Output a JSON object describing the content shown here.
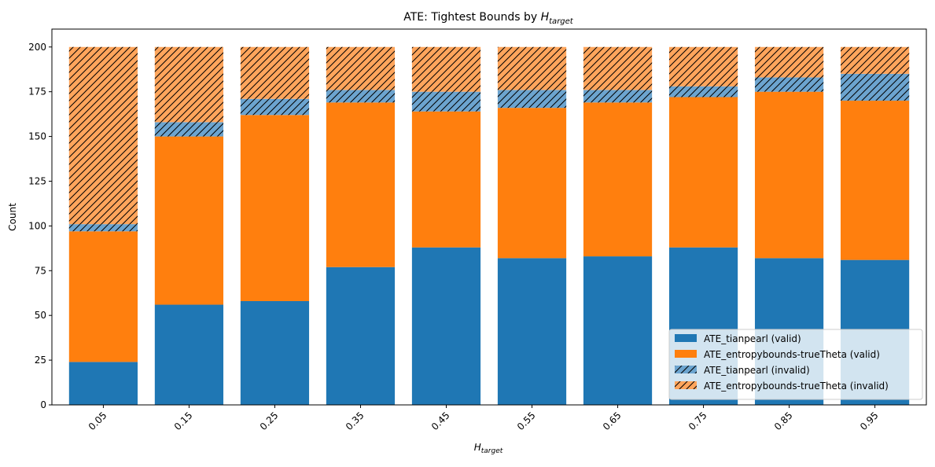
{
  "chart_data": {
    "type": "bar",
    "stacked": true,
    "title_main": "ATE: Tightest Bounds by ",
    "title_var": "H",
    "title_sub": "target",
    "xlabel_var": "H",
    "xlabel_sub": "target",
    "ylabel": "Count",
    "ylim": [
      0,
      210
    ],
    "yticks": [
      0,
      25,
      50,
      75,
      100,
      125,
      150,
      175,
      200
    ],
    "categories": [
      "0.05",
      "0.15",
      "0.25",
      "0.35",
      "0.45",
      "0.55",
      "0.65",
      "0.75",
      "0.85",
      "0.95"
    ],
    "series": [
      {
        "name": "ATE_tianpearl (valid)",
        "color": "#1f77b4",
        "hatch": false,
        "values": [
          24,
          56,
          58,
          77,
          88,
          82,
          83,
          88,
          82,
          81
        ]
      },
      {
        "name": "ATE_entropybounds-trueTheta (valid)",
        "color": "#ff7f0e",
        "hatch": false,
        "values": [
          73,
          94,
          104,
          92,
          76,
          84,
          86,
          84,
          93,
          89
        ]
      },
      {
        "name": "ATE_tianpearl (invalid)",
        "color": "#6ca4cf",
        "hatch": true,
        "values": [
          4,
          8,
          9,
          7,
          11,
          10,
          7,
          6,
          8,
          15
        ]
      },
      {
        "name": "ATE_entropybounds-trueTheta (invalid)",
        "color": "#ffa55c",
        "hatch": true,
        "values": [
          99,
          42,
          29,
          24,
          25,
          24,
          24,
          22,
          17,
          15
        ]
      }
    ],
    "grid": false,
    "legend_position": "lower-right"
  }
}
